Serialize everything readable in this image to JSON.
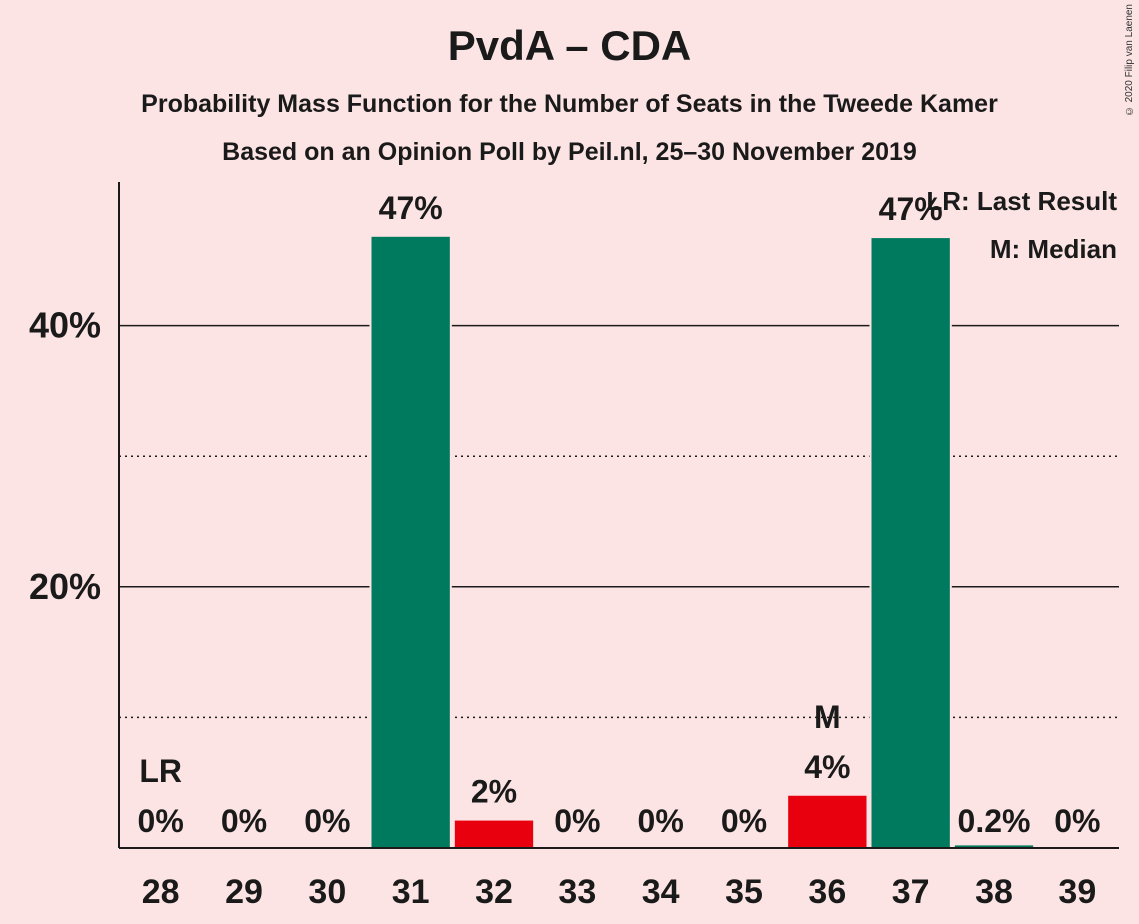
{
  "title": "PvdA – CDA",
  "subtitle": "Probability Mass Function for the Number of Seats in the Tweede Kamer",
  "subtitle2": "Based on an Opinion Poll by Peil.nl, 25–30 November 2019",
  "copyright": "© 2020 Filip van Laenen",
  "colors": {
    "background": "#fce4e4",
    "bar": "#007a5e",
    "highlight": "#e8000e",
    "text": "#1a1a1a"
  },
  "chart_data": {
    "type": "bar",
    "categories": [
      "28",
      "29",
      "30",
      "31",
      "32",
      "33",
      "34",
      "35",
      "36",
      "37",
      "38",
      "39"
    ],
    "values": [
      0,
      0,
      0,
      46.8,
      2.1,
      0,
      0,
      0,
      4.0,
      46.7,
      0.2,
      0
    ],
    "value_labels": [
      "0%",
      "0%",
      "0%",
      "47%",
      "2%",
      "0%",
      "0%",
      "0%",
      "4%",
      "47%",
      "0.2%",
      "0%"
    ],
    "bar_colors": [
      "bar",
      "bar",
      "bar",
      "bar",
      "highlight",
      "bar",
      "bar",
      "bar",
      "highlight",
      "bar",
      "bar",
      "bar"
    ],
    "ylim": [
      0,
      50
    ],
    "yticks": [
      {
        "value": 20,
        "label": "20%"
      },
      {
        "value": 40,
        "label": "40%"
      }
    ],
    "minor_gridlines": [
      10,
      30
    ],
    "markers": [
      {
        "category": "28",
        "text": "LR"
      },
      {
        "category": "36",
        "text": "M"
      }
    ],
    "legend": [
      "LR: Last Result",
      "M: Median"
    ],
    "legend_position": "top-right"
  }
}
